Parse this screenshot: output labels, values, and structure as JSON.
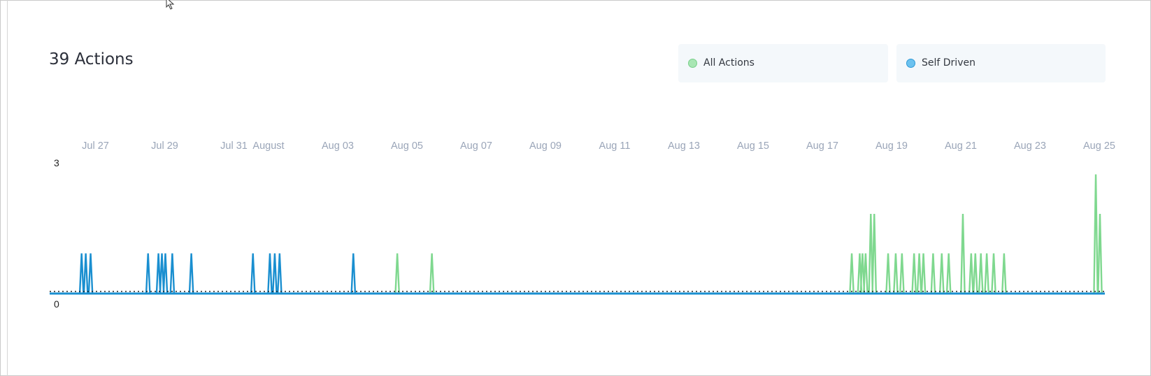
{
  "title": "39 Actions",
  "legend": [
    {
      "label": "All Actions",
      "color": "#90e0a0"
    },
    {
      "label": "Self Driven",
      "color": "#5ab8e8"
    }
  ],
  "chart_data": {
    "type": "line",
    "x_start": "Jul 26",
    "x_end": "Aug 25",
    "x_ticks": [
      {
        "label": "Jul 27",
        "day": 1
      },
      {
        "label": "Jul 29",
        "day": 3
      },
      {
        "label": "Jul 31",
        "day": 5
      },
      {
        "label": "August",
        "day": 6
      },
      {
        "label": "Aug 03",
        "day": 8
      },
      {
        "label": "Aug 05",
        "day": 10
      },
      {
        "label": "Aug 07",
        "day": 12
      },
      {
        "label": "Aug 09",
        "day": 14
      },
      {
        "label": "Aug 11",
        "day": 16
      },
      {
        "label": "Aug 13",
        "day": 18
      },
      {
        "label": "Aug 15",
        "day": 20
      },
      {
        "label": "Aug 17",
        "day": 22
      },
      {
        "label": "Aug 19",
        "day": 24
      },
      {
        "label": "Aug 21",
        "day": 26
      },
      {
        "label": "Aug 23",
        "day": 28
      },
      {
        "label": "Aug 25",
        "day": 30
      }
    ],
    "y_ticks": [
      "3",
      "0"
    ],
    "ylim": [
      0,
      3
    ],
    "series": [
      {
        "name": "All Actions",
        "color": "#7fd88f",
        "spikes": [
          {
            "day": 9.72,
            "value": 1
          },
          {
            "day": 10.72,
            "value": 1
          },
          {
            "day": 22.85,
            "value": 1
          },
          {
            "day": 23.08,
            "value": 1
          },
          {
            "day": 23.16,
            "value": 1
          },
          {
            "day": 23.25,
            "value": 1
          },
          {
            "day": 23.4,
            "value": 2
          },
          {
            "day": 23.5,
            "value": 2
          },
          {
            "day": 23.9,
            "value": 1
          },
          {
            "day": 24.12,
            "value": 1
          },
          {
            "day": 24.3,
            "value": 1
          },
          {
            "day": 24.65,
            "value": 1
          },
          {
            "day": 24.8,
            "value": 1
          },
          {
            "day": 24.92,
            "value": 1
          },
          {
            "day": 25.2,
            "value": 1
          },
          {
            "day": 25.45,
            "value": 1
          },
          {
            "day": 25.65,
            "value": 1
          },
          {
            "day": 26.06,
            "value": 2
          },
          {
            "day": 26.3,
            "value": 1
          },
          {
            "day": 26.42,
            "value": 1
          },
          {
            "day": 26.58,
            "value": 1
          },
          {
            "day": 26.75,
            "value": 1
          },
          {
            "day": 26.95,
            "value": 1
          },
          {
            "day": 27.25,
            "value": 1
          },
          {
            "day": 29.9,
            "value": 3
          },
          {
            "day": 30.02,
            "value": 2
          }
        ]
      },
      {
        "name": "Self Driven",
        "color": "#1a8fd0",
        "spikes": [
          {
            "day": 0.6,
            "value": 1
          },
          {
            "day": 0.72,
            "value": 1
          },
          {
            "day": 0.86,
            "value": 1
          },
          {
            "day": 2.52,
            "value": 1
          },
          {
            "day": 2.82,
            "value": 1
          },
          {
            "day": 2.92,
            "value": 1
          },
          {
            "day": 3.02,
            "value": 1
          },
          {
            "day": 3.22,
            "value": 1
          },
          {
            "day": 3.77,
            "value": 1
          },
          {
            "day": 5.55,
            "value": 1
          },
          {
            "day": 6.04,
            "value": 1
          },
          {
            "day": 6.18,
            "value": 1
          },
          {
            "day": 6.32,
            "value": 1
          },
          {
            "day": 8.45,
            "value": 1
          }
        ]
      }
    ]
  }
}
